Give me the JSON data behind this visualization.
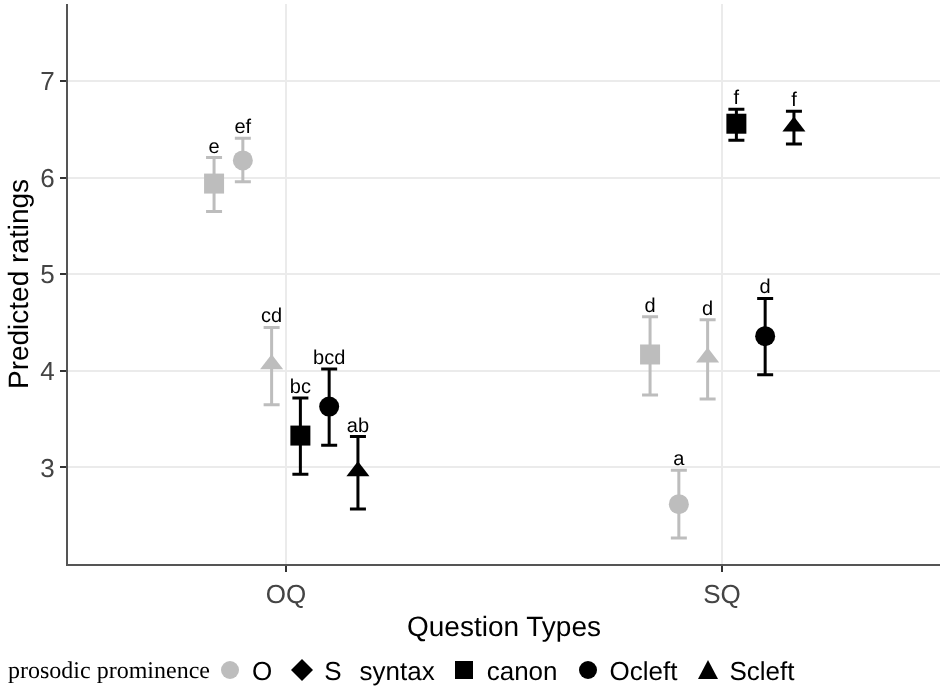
{
  "chart_data": {
    "type": "scatter",
    "xlabel": "Question Types",
    "ylabel": "Predicted ratings",
    "legend_title": "prosodic prominence",
    "legend": "bottom",
    "grid": true,
    "categories": [
      "OQ",
      "SQ"
    ],
    "ylim": [
      2,
      7.8
    ],
    "yticks": [
      3,
      4,
      5,
      6,
      7
    ],
    "series": [
      {
        "color": "#bdbdbd",
        "marker": "square",
        "values": [
          5.94,
          4.17
        ],
        "errors": [
          [
            5.65,
            6.21
          ],
          [
            3.75,
            4.56
          ]
        ],
        "value_labels": [
          "e",
          "d"
        ]
      },
      {
        "color": "#bdbdbd",
        "marker": "circle",
        "values": [
          6.18,
          2.62
        ],
        "errors": [
          [
            5.96,
            6.41
          ],
          [
            2.27,
            2.97
          ]
        ],
        "value_labels": [
          "ef",
          "a"
        ]
      },
      {
        "color": "#bdbdbd",
        "marker": "triangle",
        "values": [
          4.07,
          4.14
        ],
        "errors": [
          [
            3.65,
            4.45
          ],
          [
            3.71,
            4.53
          ]
        ],
        "value_labels": [
          "cd",
          "d"
        ]
      },
      {
        "color": "#000000",
        "marker": "square",
        "values": [
          3.33,
          6.56
        ],
        "errors": [
          [
            2.93,
            3.72
          ],
          [
            6.39,
            6.71
          ]
        ],
        "value_labels": [
          "bc",
          "f"
        ]
      },
      {
        "color": "#000000",
        "marker": "circle",
        "values": [
          3.63,
          4.36
        ],
        "errors": [
          [
            3.23,
            4.02
          ],
          [
            3.96,
            4.75
          ]
        ],
        "value_labels": [
          "bcd",
          "d"
        ]
      },
      {
        "color": "#000000",
        "marker": "triangle",
        "values": [
          2.96,
          6.53
        ],
        "errors": [
          [
            2.57,
            3.32
          ],
          [
            6.35,
            6.69
          ]
        ],
        "value_labels": [
          "ab",
          "f"
        ]
      },
      {
        "name": "O",
        "color": "#bdbdbd",
        "marker": "circle",
        "values": [
          null,
          null
        ]
      },
      {
        "name": "S",
        "color": "#000000",
        "marker": "diamond",
        "values": [
          null,
          null
        ]
      },
      {
        "name": "syntax",
        "color": "#000000",
        "marker": "none",
        "values": [
          null,
          null
        ]
      },
      {
        "name": "canon",
        "color": "#000000",
        "marker": "square",
        "values": [
          null,
          null
        ]
      },
      {
        "name": "Ocleft",
        "color": "#000000",
        "marker": "circle",
        "values": [
          null,
          null
        ]
      },
      {
        "name": "Scleft",
        "color": "#000000",
        "marker": "triangle",
        "values": [
          null,
          null
        ]
      }
    ]
  }
}
